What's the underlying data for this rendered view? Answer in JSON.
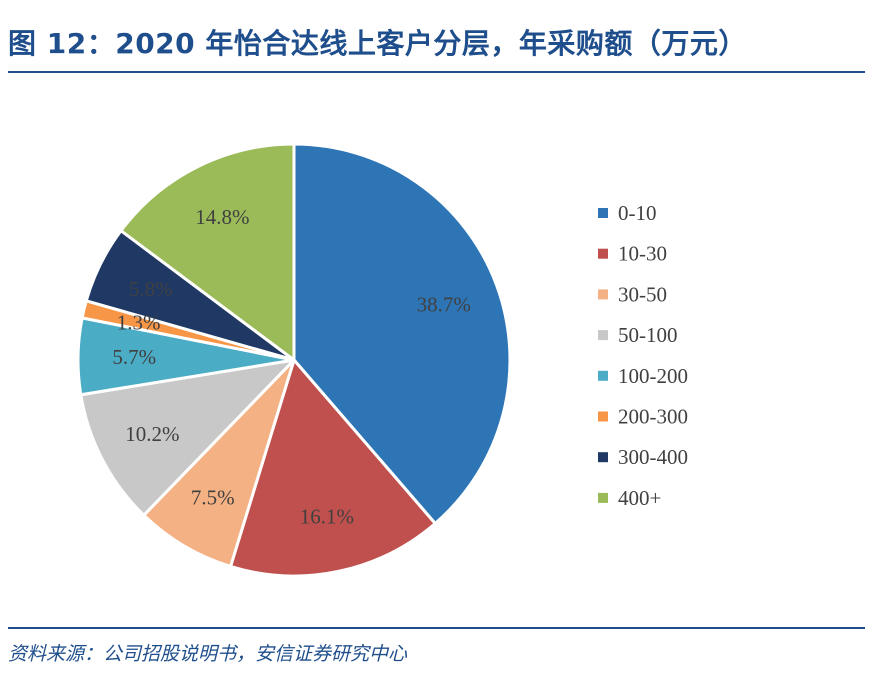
{
  "title": "图 12：2020 年怡合达线上客户分层，年采购额（万元）",
  "source": "资料来源：公司招股说明书，安信证券研究中心",
  "colors": {
    "brand": "#1f4e8c",
    "label_text": "#404040"
  },
  "chart_data": {
    "type": "pie",
    "title": "",
    "legend_position": "right",
    "categories": [
      "0-10",
      "10-30",
      "30-50",
      "50-100",
      "100-200",
      "200-300",
      "300-400",
      "400+"
    ],
    "values": [
      38.7,
      16.1,
      7.5,
      10.2,
      5.7,
      1.3,
      5.8,
      14.8
    ],
    "labels": [
      "38.7%",
      "16.1%",
      "7.5%",
      "10.2%",
      "5.7%",
      "1.3%",
      "5.8%",
      "14.8%"
    ],
    "colors": [
      "#2e75b6",
      "#c0504d",
      "#f4b183",
      "#c8c8c8",
      "#4bacc6",
      "#f79646",
      "#1f3864",
      "#9bbb59"
    ]
  }
}
